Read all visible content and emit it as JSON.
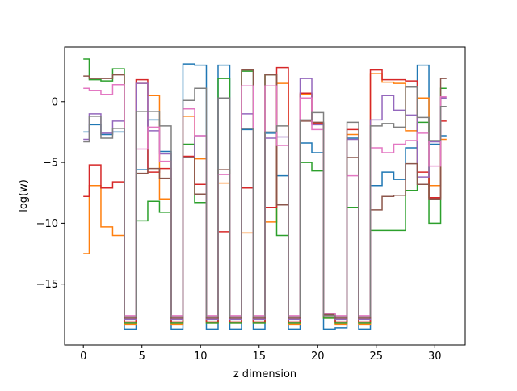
{
  "chart_data": {
    "type": "line",
    "drawstyle": "steps-mid",
    "title": "",
    "xlabel": "z dimension",
    "ylabel": "log(w)",
    "xlim": [
      -1.6,
      32.6
    ],
    "ylim": [
      -20,
      4.5
    ],
    "xticks": [
      0,
      5,
      10,
      15,
      20,
      25,
      30
    ],
    "yticks": [
      -15,
      -10,
      -5,
      0
    ],
    "grid": false,
    "legend": "none",
    "x": [
      0,
      1,
      2,
      3,
      4,
      5,
      6,
      7,
      8,
      9,
      10,
      11,
      12,
      13,
      14,
      15,
      16,
      17,
      18,
      19,
      20,
      21,
      22,
      23,
      24,
      25,
      26,
      27,
      28,
      29,
      30,
      31
    ],
    "series": [
      {
        "color": "#1f77b4",
        "values": [
          -2.5,
          -1.9,
          -2.7,
          -2.5,
          -18.7,
          -5.6,
          -1.5,
          -4.1,
          -18.7,
          3.1,
          3.0,
          -18.7,
          3.0,
          -18.7,
          -2.3,
          -18.7,
          -2.6,
          -6.1,
          -18.7,
          -3.4,
          -4.2,
          -18.7,
          -18.6,
          -3.0,
          -18.7,
          -6.9,
          -5.8,
          -6.4,
          -3.8,
          3.0,
          -3.5,
          -2.8
        ]
      },
      {
        "color": "#ff7f0e",
        "values": [
          -12.5,
          -6.9,
          -10.3,
          -11.0,
          -18.3,
          1.5,
          0.5,
          -8.0,
          -18.3,
          -1.2,
          -4.7,
          -18.2,
          -6.7,
          -18.2,
          -10.8,
          -18.2,
          -9.9,
          1.5,
          -18.3,
          0.6,
          -1.8,
          -17.8,
          -18.3,
          -2.7,
          -18.3,
          2.3,
          1.6,
          1.5,
          -2.4,
          0.3,
          -6.9,
          -3.1
        ]
      },
      {
        "color": "#2ca02c",
        "values": [
          3.5,
          1.8,
          1.7,
          2.7,
          -18.2,
          -9.8,
          -8.2,
          -9.1,
          -18.2,
          -3.5,
          -8.3,
          -18.2,
          1.9,
          -18.2,
          2.5,
          -18.2,
          2.2,
          -11.0,
          -18.2,
          -5.0,
          -5.7,
          -17.8,
          -18.2,
          -8.7,
          -18.2,
          -10.6,
          -10.6,
          -10.6,
          -7.3,
          -1.7,
          -10.0,
          1.1
        ]
      },
      {
        "color": "#d62728",
        "values": [
          -7.8,
          -5.2,
          -7.1,
          -6.6,
          -18.1,
          1.8,
          -5.8,
          -5.5,
          -18.1,
          -4.5,
          -6.8,
          -18.1,
          -10.7,
          -18.1,
          -7.1,
          -18.1,
          -8.7,
          2.8,
          -18.1,
          0.7,
          -1.8,
          -17.6,
          -18.1,
          -2.3,
          -18.1,
          2.6,
          1.8,
          1.8,
          1.7,
          -5.8,
          -7.9,
          -1.6
        ]
      },
      {
        "color": "#9467bd",
        "values": [
          -3.1,
          -1.0,
          -2.6,
          -1.6,
          -17.9,
          1.5,
          -2.4,
          -4.3,
          -17.9,
          -4.6,
          -2.8,
          -17.9,
          0.3,
          -17.9,
          -1.0,
          -17.9,
          -3.0,
          -2.9,
          -17.9,
          1.9,
          -1.9,
          -17.5,
          -17.9,
          -3.1,
          -17.9,
          -1.5,
          0.5,
          -0.7,
          -1.1,
          -6.2,
          -3.3,
          0.3
        ]
      },
      {
        "color": "#8c564b",
        "values": [
          2.1,
          1.9,
          1.9,
          2.2,
          -17.8,
          -5.9,
          -5.5,
          -6.3,
          -17.8,
          -4.6,
          -7.6,
          -17.8,
          -5.6,
          -17.8,
          2.6,
          -17.8,
          2.2,
          -8.5,
          -17.8,
          -1.6,
          -1.7,
          -17.5,
          -17.8,
          -4.6,
          -17.8,
          -8.9,
          -7.8,
          -7.7,
          -5.1,
          -6.8,
          -8.0,
          1.9
        ]
      },
      {
        "color": "#e377c2",
        "values": [
          1.1,
          0.9,
          0.6,
          1.4,
          -17.6,
          -3.9,
          -2.1,
          -4.9,
          -17.6,
          -0.6,
          -2.8,
          -17.6,
          -6.0,
          -17.6,
          1.3,
          -17.6,
          1.3,
          -3.6,
          -17.6,
          0.3,
          -2.3,
          -17.4,
          -17.6,
          -6.1,
          -17.6,
          -3.8,
          -4.2,
          -3.5,
          -3.2,
          -2.6,
          -5.3,
          0.4
        ]
      },
      {
        "color": "#7f7f7f",
        "values": [
          -3.3,
          -1.2,
          -3.0,
          -2.2,
          -17.7,
          -0.8,
          -0.8,
          -2.0,
          -17.7,
          0.1,
          1.1,
          -17.7,
          0.3,
          -17.7,
          -2.2,
          -17.7,
          -2.5,
          -2.0,
          -17.7,
          -1.5,
          -0.9,
          -17.6,
          -17.7,
          -1.7,
          -17.7,
          -2.0,
          -1.8,
          -2.1,
          1.2,
          -1.3,
          -3.2,
          -0.4
        ]
      }
    ]
  }
}
